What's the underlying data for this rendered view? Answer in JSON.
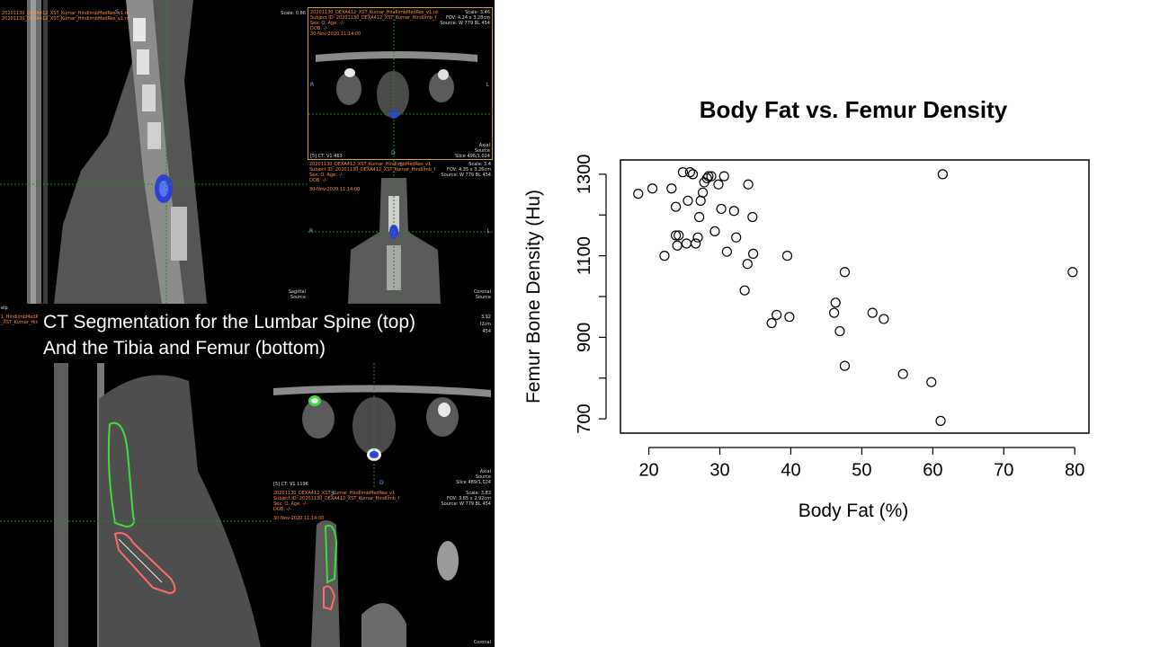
{
  "slide": {
    "caption_line1": "CT Segmentation for the Lumbar Spine (top)",
    "caption_line2": "And the Tibia and Femur (bottom)"
  },
  "ct": {
    "top_sagittal": {
      "scale": "Scale: 0.86",
      "label": "Sagittal",
      "source": "Source",
      "hdr1": "20201130_DEXA412_XST_Kumar_HindlimbMedRes_v1.nii",
      "hdr2": "20201130_DEXA412_XST_Kumar_HindlimbMedRes_v1.nii"
    },
    "top_axial": {
      "hdr1": "20201130_DEXA412_XST_Kumar_HindlimbMedRes_v1.nii",
      "subject": "Subject ID: 20201130_DEXA412_XST_Kumar_Hindlimb_f",
      "sex_age": "Sex: O, Age: -/-",
      "dob": "DOB: -/-",
      "date": "30-Nov-2020 11:14:00",
      "scale": "Scale: 3.46",
      "fov": "FOV: 4.24 x 3.28cm",
      "src": "Source: W 779 BL 454",
      "series": "[5] CT: V1 463",
      "label": "Axial",
      "source": "Source",
      "slice": "Slice 496/1,024",
      "R": "R",
      "L": "L",
      "D": "D"
    },
    "top_coronal": {
      "hdr1": "20201130_DEXA412_XST_Kumar_HindlimbMedRes_v1",
      "subject": "Subject ID: 20201130_DEXA412_XST_Kumar_Hindlimb_f",
      "sex_age": "Sex: O, Age: -/-",
      "dob": "DOB: -/-",
      "date": "30-Nov-2020 11:14:00",
      "scale": "Scale: 3.4",
      "fov": "FOV: 4.35 x 3.26cm",
      "src": "Source: W 779 BL 454",
      "label": "Coronal",
      "source": "Source",
      "R": "R",
      "L": "L",
      "S": "S"
    },
    "mid_strip": {
      "help": "elp",
      "hdr1": "1_HindlimbMedRe",
      "hdr2": "_XST_Kumar_Hindli",
      "v1": "3.92",
      "v2": "92cm",
      "v3": "454"
    },
    "bottom_axial": {
      "series": "[5] CT: V1 1196",
      "label": "Axial",
      "source": "Source",
      "slice": "Slice 489/1,024",
      "D": "D"
    },
    "bottom_coronal": {
      "hdr1": "20201130_DEXA412_XST_Kumar_HindlimbMedRes_v1",
      "subject": "Subject ID: 20201130_DEXA412_XST_Kumar_Hindlimb_f",
      "sex_age": "Sex: O, Age: -/-",
      "dob": "DOB: -/-",
      "date": "30-Nov-2020 11:14:00",
      "scale": "Scale: 3.83",
      "fov": "FOV: 3.85 x 2.92cm",
      "src": "Source: W 779 BL 454",
      "label": "Coronal",
      "S": "S"
    }
  },
  "chart_data": {
    "type": "scatter",
    "title": "Body Fat vs. Femur Density",
    "xlabel": "Body Fat (%)",
    "ylabel": "Femur Bone Density (Hu)",
    "xlim": [
      16,
      82
    ],
    "ylim": [
      665,
      1335
    ],
    "xticks": [
      20,
      30,
      40,
      50,
      60,
      70,
      80
    ],
    "yticks": [
      700,
      900,
      1100,
      1300
    ],
    "yticks_minor": [
      800,
      1000,
      1200
    ],
    "grid": false,
    "marker": "open-circle",
    "x": [
      18.5,
      20.5,
      22.2,
      23.2,
      23.8,
      23.8,
      24.0,
      24.2,
      24.8,
      25.3,
      25.5,
      25.8,
      26.2,
      26.6,
      26.9,
      27.1,
      27.3,
      27.6,
      27.8,
      28.2,
      28.4,
      28.8,
      29.3,
      29.8,
      30.2,
      30.6,
      31.0,
      32.0,
      32.3,
      33.5,
      33.9,
      34.0,
      34.6,
      34.7,
      37.3,
      38.0,
      39.5,
      39.8,
      46.1,
      46.3,
      46.9,
      47.6,
      47.6,
      51.5,
      53.1,
      55.8,
      59.8,
      61.1,
      61.4,
      79.7
    ],
    "y": [
      1252,
      1265,
      1100,
      1265,
      1220,
      1150,
      1125,
      1150,
      1305,
      1130,
      1235,
      1305,
      1300,
      1130,
      1145,
      1195,
      1235,
      1255,
      1280,
      1290,
      1295,
      1295,
      1160,
      1275,
      1215,
      1295,
      1110,
      1210,
      1145,
      1015,
      1080,
      1275,
      1195,
      1105,
      935,
      955,
      1100,
      950,
      960,
      985,
      915,
      1060,
      830,
      960,
      945,
      810,
      790,
      695,
      1300,
      1060
    ]
  }
}
